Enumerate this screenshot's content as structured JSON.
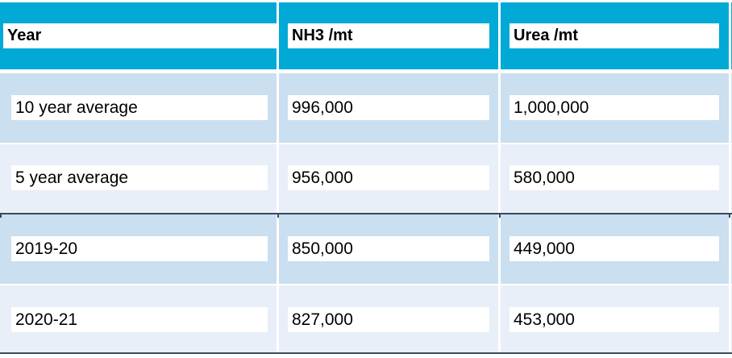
{
  "table": {
    "headers": [
      "Year",
      "NH3 /mt",
      "Urea /mt"
    ],
    "rows": [
      [
        "10 year average",
        "996,000",
        "1,000,000"
      ],
      [
        "5 year average",
        "956,000",
        "580,000"
      ],
      [
        "2019-20",
        "850,000",
        "449,000"
      ],
      [
        "2020-21",
        "827,000",
        "453,000"
      ]
    ]
  },
  "colors": {
    "header_bg": "#00a9d6",
    "row_dark": "#cadff0",
    "row_light": "#e8eff8",
    "rule": "#3a4a5a"
  }
}
